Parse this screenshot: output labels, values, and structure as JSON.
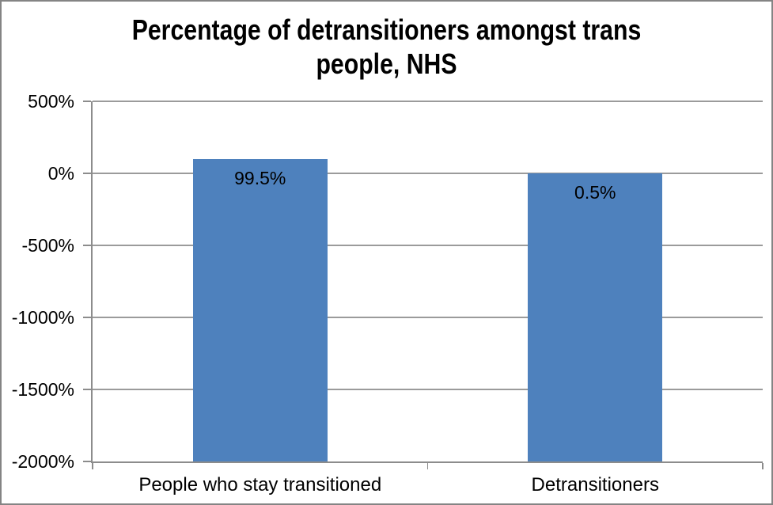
{
  "chart_data": {
    "type": "bar",
    "title": "Percentage of detransitioners amongst trans people, NHS",
    "title_lines": [
      "Percentage of detransitioners amongst trans",
      "people, NHS"
    ],
    "categories": [
      "People who stay transitioned",
      "Detransitioners"
    ],
    "values": [
      99.5,
      0.5
    ],
    "data_labels": [
      "99.5%",
      "0.5%"
    ],
    "xlabel": "",
    "ylabel": "",
    "ylim": [
      -2000,
      500
    ],
    "yticks": [
      {
        "value": 500,
        "label": "500%"
      },
      {
        "value": 0,
        "label": "0%"
      },
      {
        "value": -500,
        "label": "-500%"
      },
      {
        "value": -1000,
        "label": "-1000%"
      },
      {
        "value": -1500,
        "label": "-1500%"
      },
      {
        "value": -2000,
        "label": "-2000%"
      }
    ],
    "grid": true,
    "legend": false,
    "bar_base": "ymin",
    "data_label_position": "inside-end",
    "colors": {
      "bar": "#4e81bd",
      "gridline": "#9b9b9b",
      "axis": "#8c8c8c",
      "border": "#848484",
      "background": "#ffffff",
      "text": "#000000"
    }
  }
}
